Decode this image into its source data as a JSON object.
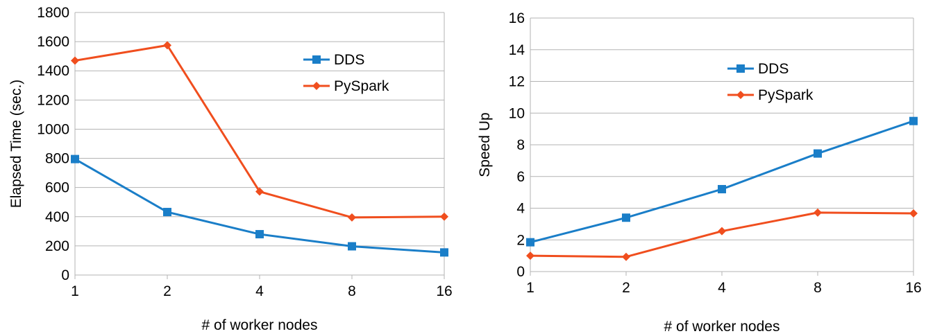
{
  "chart_data": [
    {
      "type": "line",
      "categories": [
        "1",
        "2",
        "4",
        "8",
        "16"
      ],
      "xlabel": "# of worker nodes",
      "ylabel": "Elapsed Time (sec.)",
      "ylim": [
        0,
        1800
      ],
      "yticks": [
        "0",
        "200",
        "400",
        "600",
        "800",
        "1000",
        "1200",
        "1400",
        "1600",
        "1800"
      ],
      "grid": true,
      "legend": "top-right",
      "series": [
        {
          "name": "DDS",
          "color": "#1a7ec8",
          "marker": "square",
          "values": [
            795,
            432,
            280,
            197,
            155
          ]
        },
        {
          "name": "PySpark",
          "color": "#f04e1e",
          "marker": "diamond",
          "values": [
            1470,
            1575,
            572,
            395,
            400
          ]
        }
      ]
    },
    {
      "type": "line",
      "categories": [
        "1",
        "2",
        "4",
        "8",
        "16"
      ],
      "xlabel": "# of worker nodes",
      "ylabel": "Speed Up",
      "ylim": [
        0,
        16
      ],
      "yticks": [
        "0",
        "2",
        "4",
        "6",
        "8",
        "10",
        "12",
        "14",
        "16"
      ],
      "grid": true,
      "legend": "top-center",
      "series": [
        {
          "name": "DDS",
          "color": "#1a7ec8",
          "marker": "square",
          "values": [
            1.85,
            3.4,
            5.2,
            7.45,
            9.5
          ]
        },
        {
          "name": "PySpark",
          "color": "#f04e1e",
          "marker": "diamond",
          "values": [
            1.0,
            0.93,
            2.55,
            3.72,
            3.67
          ]
        }
      ]
    }
  ]
}
